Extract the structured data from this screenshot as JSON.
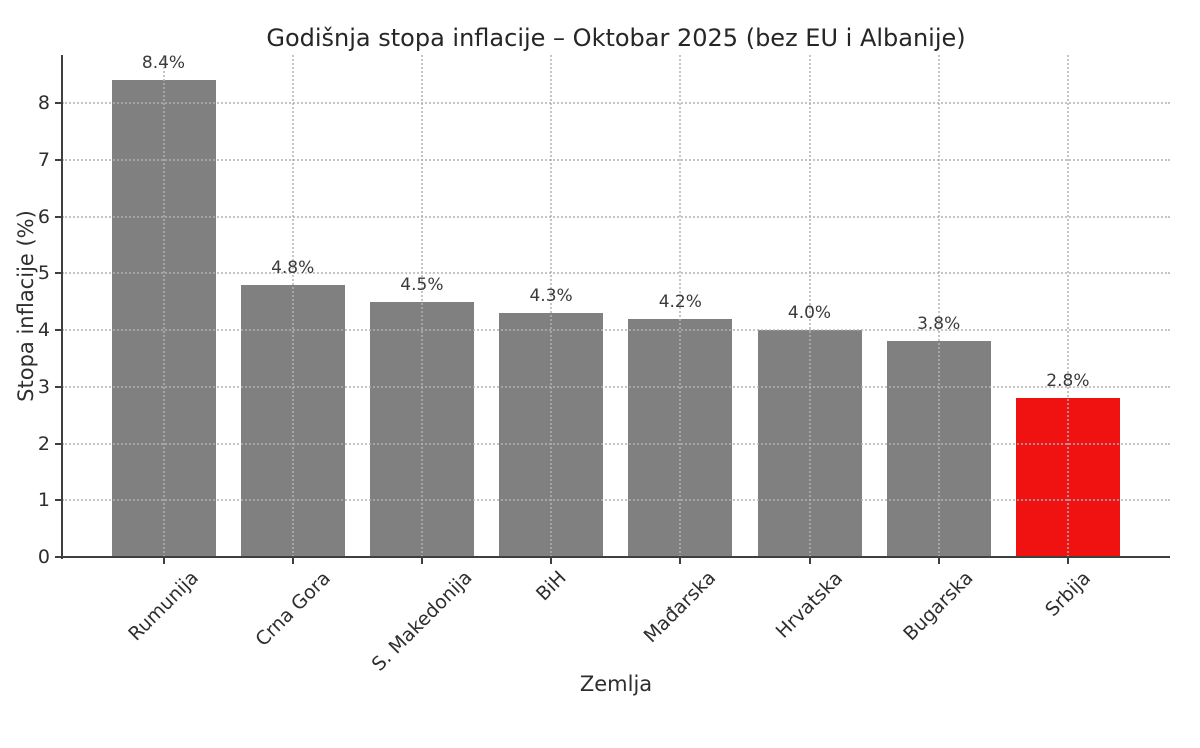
{
  "chart_data": {
    "type": "bar",
    "title": "Godišnja stopa inflacije – Oktobar 2025 (bez EU i Albanije)",
    "xlabel": "Zemlja",
    "ylabel": "Stopa inflacije (%)",
    "categories": [
      "Rumunija",
      "Crna Gora",
      "S. Makedonija",
      "BiH",
      "Mađarska",
      "Hrvatska",
      "Bugarska",
      "Srbija"
    ],
    "values": [
      8.4,
      4.8,
      4.5,
      4.3,
      4.2,
      4.0,
      3.8,
      2.8
    ],
    "value_labels": [
      "8.4%",
      "4.8%",
      "4.5%",
      "4.3%",
      "4.2%",
      "4.0%",
      "3.8%",
      "2.8%"
    ],
    "bar_colors": [
      "#808080",
      "#808080",
      "#808080",
      "#808080",
      "#808080",
      "#808080",
      "#808080",
      "#f01111"
    ],
    "default_bar_color": "#808080",
    "highlight_bar_color": "#f01111",
    "highlighted_category": "Srbija",
    "ytick_labels": [
      "0",
      "1",
      "2",
      "3",
      "4",
      "5",
      "6",
      "7",
      "8"
    ],
    "ylim": [
      0,
      8.85
    ],
    "grid": {
      "style": "dotted",
      "axes": "both"
    },
    "legend": "none"
  }
}
